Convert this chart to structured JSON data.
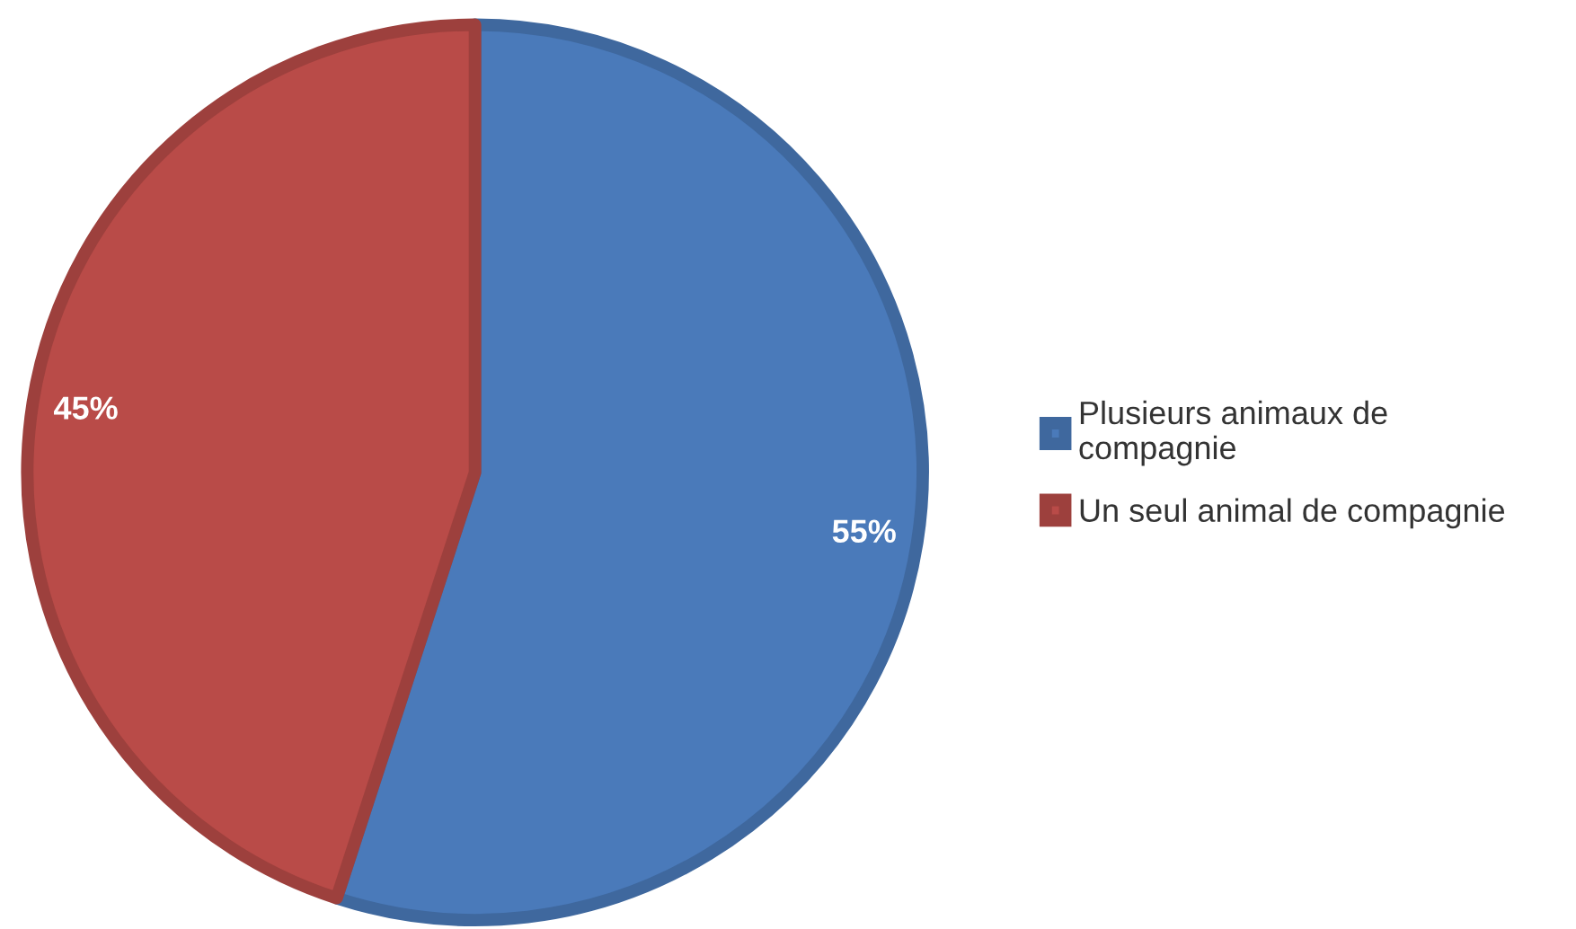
{
  "chart_data": {
    "type": "pie",
    "categories": [
      "Plusieurs animaux de compagnie",
      "Un seul animal de compagnie"
    ],
    "values": [
      55,
      45
    ],
    "colors": [
      "#4a7aba",
      "#b94b48"
    ],
    "value_labels": [
      "55%",
      "45%"
    ],
    "legend": "right"
  }
}
